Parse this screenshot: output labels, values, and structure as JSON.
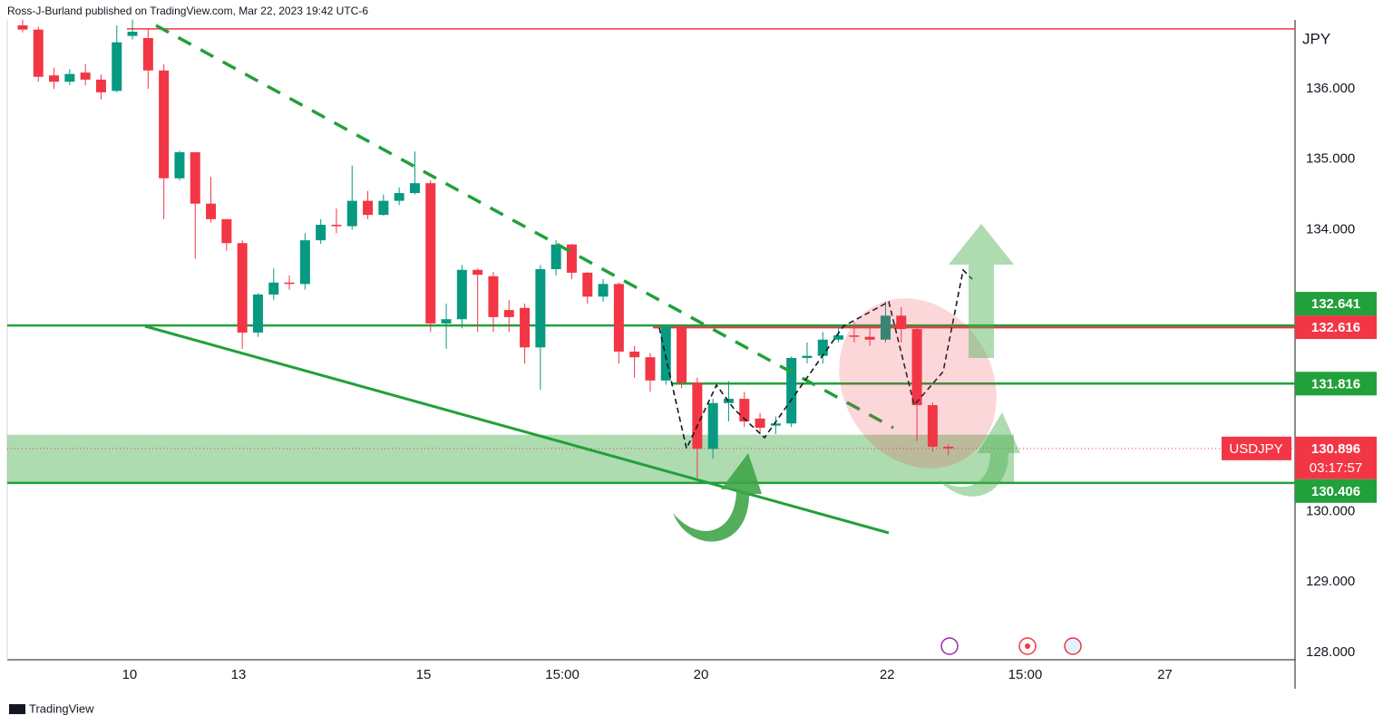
{
  "header": {
    "publisher": "Ross-J-Burland published on TradingView.com, Mar 22, 2023 19:42 UTC-6",
    "brand": "TradingView"
  },
  "chart_data": {
    "type": "candlestick",
    "currency": "JPY",
    "series": [
      {
        "name": "USDJPY",
        "up_color": "#089981",
        "down_color": "#f23645",
        "open": [
          136.9,
          136.84,
          136.19,
          136.1,
          136.23,
          136.13,
          135.97,
          136.75,
          136.72,
          136.26,
          134.73,
          135.1,
          134.37,
          134.15,
          133.81,
          132.54,
          133.08,
          133.25,
          133.23,
          133.85,
          134.07,
          134.05,
          134.41,
          134.21,
          134.41,
          134.52,
          134.66,
          132.67,
          132.73,
          133.43,
          133.34,
          132.86,
          132.89,
          132.33,
          133.44,
          133.79,
          133.39,
          133.05,
          133.23,
          132.27,
          132.19,
          131.86,
          132.63,
          131.83,
          130.89,
          131.54,
          131.6,
          131.32,
          131.22,
          131.25,
          132.18,
          132.21,
          132.44,
          132.5,
          132.48,
          132.44,
          132.78,
          132.59,
          131.51,
          130.92
        ],
        "high": [
          136.98,
          136.88,
          136.3,
          136.28,
          136.35,
          136.2,
          136.9,
          136.98,
          136.85,
          136.35,
          135.12,
          135.1,
          134.75,
          134.15,
          133.85,
          133.1,
          133.45,
          133.35,
          133.95,
          134.15,
          134.3,
          134.91,
          134.55,
          134.5,
          134.6,
          135.11,
          134.7,
          132.95,
          133.5,
          133.45,
          133.4,
          133.0,
          132.95,
          133.5,
          133.85,
          133.8,
          133.4,
          133.3,
          133.25,
          132.35,
          132.25,
          132.65,
          132.65,
          131.9,
          131.6,
          131.85,
          131.7,
          131.4,
          131.35,
          132.2,
          132.4,
          132.55,
          132.65,
          132.7,
          132.6,
          132.98,
          132.9,
          132.62,
          131.55,
          130.95
        ],
        "low": [
          136.8,
          136.1,
          136.0,
          136.05,
          136.05,
          135.85,
          135.95,
          136.7,
          136.0,
          134.15,
          134.7,
          133.59,
          134.1,
          133.7,
          132.31,
          132.48,
          133.0,
          133.15,
          133.15,
          133.8,
          133.95,
          134.0,
          134.15,
          134.2,
          134.35,
          134.5,
          132.55,
          132.31,
          132.6,
          132.55,
          132.55,
          132.55,
          132.1,
          131.73,
          133.35,
          133.3,
          132.95,
          132.98,
          132.1,
          131.9,
          131.7,
          131.8,
          131.75,
          130.48,
          130.75,
          131.28,
          131.2,
          131.1,
          131.1,
          131.2,
          132.1,
          132.1,
          132.4,
          132.4,
          132.35,
          132.4,
          132.4,
          131.0,
          130.85,
          130.8
        ],
        "close": [
          136.84,
          136.17,
          136.1,
          136.21,
          136.13,
          135.95,
          136.66,
          136.81,
          136.26,
          134.73,
          135.1,
          134.37,
          134.15,
          133.81,
          132.54,
          133.08,
          133.25,
          133.23,
          133.85,
          134.07,
          134.05,
          134.41,
          134.21,
          134.41,
          134.52,
          134.66,
          132.67,
          132.73,
          133.43,
          133.36,
          132.76,
          132.76,
          132.33,
          133.44,
          133.79,
          133.39,
          133.05,
          133.23,
          132.27,
          132.19,
          131.86,
          132.63,
          131.83,
          130.89,
          131.54,
          131.6,
          131.28,
          131.19,
          131.25,
          132.18,
          132.21,
          132.44,
          132.5,
          132.48,
          132.44,
          132.78,
          132.59,
          131.51,
          130.92,
          130.896
        ]
      }
    ],
    "ylim": [
      127.897,
      136.977
    ],
    "yticks": [
      {
        "value": 128,
        "label": "128.000"
      },
      {
        "value": 129,
        "label": "129.000"
      },
      {
        "value": 130,
        "label": "130.000"
      },
      {
        "value": 134,
        "label": "134.000"
      },
      {
        "value": 135,
        "label": "135.000"
      },
      {
        "value": 136,
        "label": "136.000"
      }
    ],
    "xlim": [
      -0.98,
      81.1
    ],
    "xticks": [
      {
        "value": 6.82,
        "label": "10"
      },
      {
        "value": 13.76,
        "label": "13"
      },
      {
        "value": 25.55,
        "label": "15"
      },
      {
        "value": 34.4,
        "label": "15:00"
      },
      {
        "value": 43.24,
        "label": "20"
      },
      {
        "value": 55.1,
        "label": "22"
      },
      {
        "value": 63.9,
        "label": "15:00"
      },
      {
        "value": 72.8,
        "label": "27"
      }
    ],
    "grid": false,
    "levels": [
      {
        "value": 132.616,
        "color": "#f23645"
      },
      {
        "value": 132.641,
        "color": "#22a03a"
      },
      {
        "value": 131.816,
        "color": "#22a03a"
      },
      {
        "value": 130.406,
        "color": "#22a03a"
      }
    ],
    "resistance_line": {
      "value": 136.85,
      "color": "#f23645"
    },
    "zone": {
      "low": 130.406,
      "high": 131.09,
      "color": "rgba(76,175,80,0.45)"
    },
    "last": {
      "value": 130.896,
      "countdown": "03:17:57",
      "color": "#f23645"
    }
  }
}
